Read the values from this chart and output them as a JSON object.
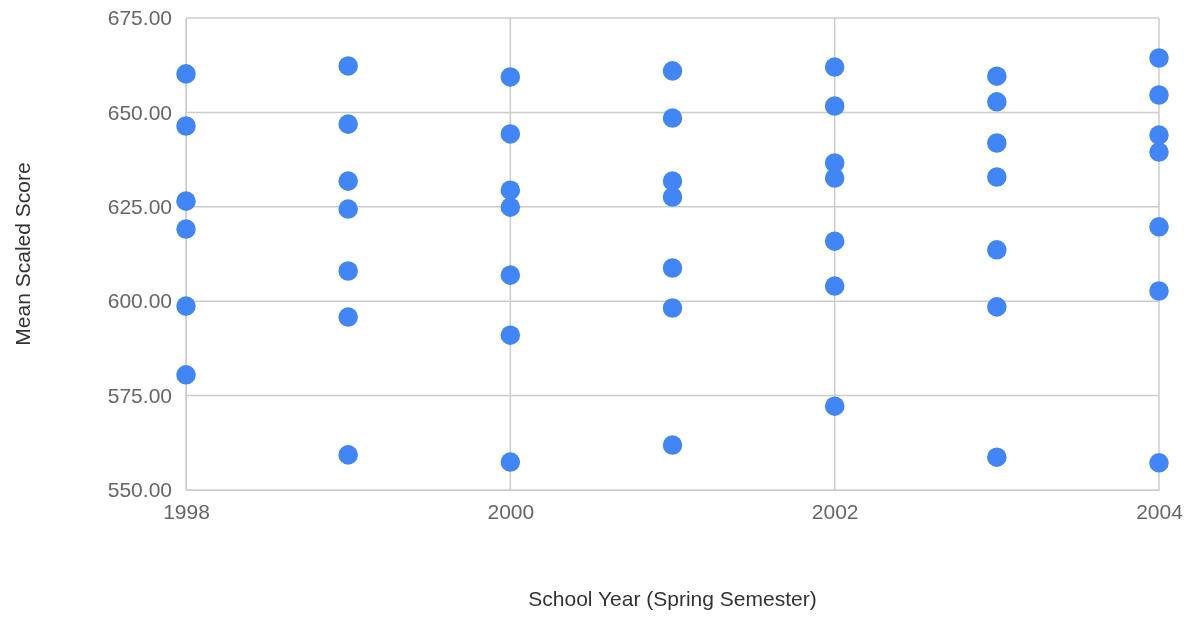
{
  "chart_data": {
    "type": "scatter",
    "xlabel": "School Year (Spring Semester)",
    "ylabel": "Mean Scaled Score",
    "xlim": [
      1998,
      2004
    ],
    "xticks": [
      1998,
      2000,
      2002,
      2004
    ],
    "ylim": [
      550,
      675
    ],
    "yticks": [
      {
        "value": 550,
        "label": "550.00"
      },
      {
        "value": 575,
        "label": "575.00"
      },
      {
        "value": 600,
        "label": "600.00"
      },
      {
        "value": 625,
        "label": "625.00"
      },
      {
        "value": 650,
        "label": "650.00"
      },
      {
        "value": 675,
        "label": "675.00"
      }
    ],
    "grid": true,
    "marker": "circle",
    "series": [
      {
        "color": "#4285f4",
        "x": [
          1998,
          1998,
          1998,
          1998,
          1998,
          1998,
          1999,
          1999,
          1999,
          1999,
          1999,
          1999,
          1999,
          2000,
          2000,
          2000,
          2000,
          2000,
          2000,
          2000,
          2001,
          2001,
          2001,
          2001,
          2001,
          2001,
          2001,
          2002,
          2002,
          2002,
          2002,
          2002,
          2002,
          2002,
          2003,
          2003,
          2003,
          2003,
          2003,
          2003,
          2003,
          2004,
          2004,
          2004,
          2004,
          2004,
          2004,
          2004
        ],
        "values": [
          660.2,
          646.4,
          626.5,
          619.1,
          598.7,
          580.5,
          662.3,
          646.9,
          631.8,
          624.4,
          608.0,
          595.8,
          559.3,
          659.4,
          644.3,
          629.4,
          624.9,
          606.9,
          591.0,
          557.4,
          661.0,
          648.5,
          631.8,
          627.6,
          608.8,
          598.2,
          561.9,
          662.0,
          651.7,
          636.6,
          632.6,
          615.9,
          604.0,
          572.2,
          659.6,
          652.8,
          641.9,
          632.9,
          613.6,
          598.5,
          558.7,
          664.4,
          654.6,
          644.0,
          639.5,
          619.7,
          602.7,
          557.2
        ]
      }
    ]
  }
}
